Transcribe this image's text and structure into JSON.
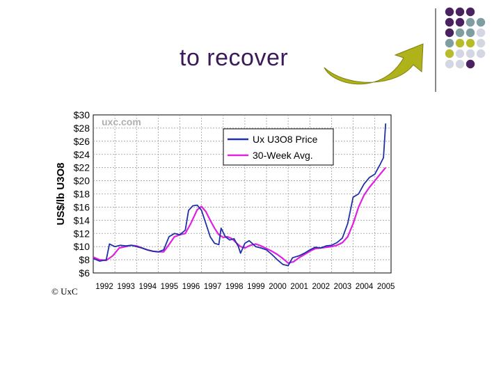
{
  "slide": {
    "title": "to recover",
    "copyright": "© UxC"
  },
  "decor": {
    "dot_colors": [
      "#4b2260",
      "#7f9ea2",
      "#b8bc2a",
      "#d5d6e3"
    ],
    "arrow_color": "#b0b21a"
  },
  "chart_data": {
    "type": "line",
    "title": "",
    "watermark": "uxc.com",
    "xlabel": "",
    "ylabel": "US$/lb U3O8",
    "ylim": [
      6,
      30
    ],
    "xlim": [
      1992,
      2005.75
    ],
    "y_ticks": [
      "$30",
      "$28",
      "$26",
      "$24",
      "$22",
      "$20",
      "$18",
      "$16",
      "$14",
      "$12",
      "$10",
      "$8",
      "$6"
    ],
    "x_ticks": [
      "1992",
      "1993",
      "1994",
      "1995",
      "1996",
      "1997",
      "1998",
      "1999",
      "2000",
      "2001",
      "2002",
      "2003",
      "2004",
      "2005"
    ],
    "grid": true,
    "legend": "top-right",
    "series": [
      {
        "name": "Ux U3O8 Price",
        "color": "#1f2fa8",
        "points": [
          [
            1992.0,
            8.2
          ],
          [
            1992.3,
            7.8
          ],
          [
            1992.6,
            8.0
          ],
          [
            1992.75,
            10.4
          ],
          [
            1993.0,
            10.0
          ],
          [
            1993.25,
            10.2
          ],
          [
            1993.5,
            10.1
          ],
          [
            1993.75,
            10.2
          ],
          [
            1994.0,
            10.0
          ],
          [
            1994.25,
            9.8
          ],
          [
            1994.5,
            9.5
          ],
          [
            1994.75,
            9.3
          ],
          [
            1995.0,
            9.2
          ],
          [
            1995.25,
            9.5
          ],
          [
            1995.5,
            11.5
          ],
          [
            1995.75,
            12.0
          ],
          [
            1996.0,
            11.8
          ],
          [
            1996.25,
            12.5
          ],
          [
            1996.4,
            15.5
          ],
          [
            1996.6,
            16.2
          ],
          [
            1996.8,
            16.3
          ],
          [
            1997.0,
            15.5
          ],
          [
            1997.2,
            13.5
          ],
          [
            1997.4,
            11.5
          ],
          [
            1997.6,
            10.5
          ],
          [
            1997.8,
            10.3
          ],
          [
            1997.9,
            12.8
          ],
          [
            1998.1,
            11.5
          ],
          [
            1998.3,
            11.0
          ],
          [
            1998.5,
            11.2
          ],
          [
            1998.7,
            10.0
          ],
          [
            1998.8,
            9.0
          ],
          [
            1999.0,
            10.5
          ],
          [
            1999.2,
            10.9
          ],
          [
            1999.5,
            10.0
          ],
          [
            1999.75,
            9.8
          ],
          [
            2000.0,
            9.5
          ],
          [
            2000.25,
            8.8
          ],
          [
            2000.5,
            8.0
          ],
          [
            2000.75,
            7.3
          ],
          [
            2001.0,
            7.1
          ],
          [
            2001.2,
            8.3
          ],
          [
            2001.5,
            8.6
          ],
          [
            2001.75,
            9.0
          ],
          [
            2002.0,
            9.5
          ],
          [
            2002.25,
            9.9
          ],
          [
            2002.5,
            9.8
          ],
          [
            2002.75,
            10.1
          ],
          [
            2003.0,
            10.2
          ],
          [
            2003.25,
            10.6
          ],
          [
            2003.5,
            11.3
          ],
          [
            2003.75,
            13.5
          ],
          [
            2004.0,
            17.5
          ],
          [
            2004.25,
            18.0
          ],
          [
            2004.5,
            19.5
          ],
          [
            2004.75,
            20.5
          ],
          [
            2005.0,
            21.0
          ],
          [
            2005.25,
            22.5
          ],
          [
            2005.4,
            23.5
          ],
          [
            2005.5,
            28.7
          ]
        ]
      },
      {
        "name": "30-Week Avg.",
        "color": "#e020e0",
        "points": [
          [
            1992.0,
            8.4
          ],
          [
            1992.3,
            8.0
          ],
          [
            1992.6,
            7.9
          ],
          [
            1992.9,
            8.6
          ],
          [
            1993.2,
            9.8
          ],
          [
            1993.5,
            10.0
          ],
          [
            1993.75,
            10.2
          ],
          [
            1994.0,
            10.1
          ],
          [
            1994.25,
            9.8
          ],
          [
            1994.5,
            9.5
          ],
          [
            1994.75,
            9.3
          ],
          [
            1995.0,
            9.2
          ],
          [
            1995.25,
            9.2
          ],
          [
            1995.5,
            10.3
          ],
          [
            1995.75,
            11.5
          ],
          [
            1996.0,
            11.8
          ],
          [
            1996.25,
            12.0
          ],
          [
            1996.5,
            13.5
          ],
          [
            1996.8,
            15.6
          ],
          [
            1997.0,
            16.1
          ],
          [
            1997.2,
            15.3
          ],
          [
            1997.4,
            14.0
          ],
          [
            1997.6,
            12.8
          ],
          [
            1997.8,
            11.8
          ],
          [
            1998.0,
            11.4
          ],
          [
            1998.2,
            11.5
          ],
          [
            1998.4,
            11.2
          ],
          [
            1998.6,
            10.6
          ],
          [
            1998.8,
            10.0
          ],
          [
            1999.0,
            9.8
          ],
          [
            1999.25,
            10.2
          ],
          [
            1999.5,
            10.4
          ],
          [
            1999.75,
            10.1
          ],
          [
            2000.0,
            9.7
          ],
          [
            2000.25,
            9.3
          ],
          [
            2000.5,
            8.8
          ],
          [
            2000.75,
            8.2
          ],
          [
            2001.0,
            7.5
          ],
          [
            2001.25,
            7.7
          ],
          [
            2001.5,
            8.3
          ],
          [
            2001.75,
            8.8
          ],
          [
            2002.0,
            9.3
          ],
          [
            2002.25,
            9.7
          ],
          [
            2002.5,
            9.8
          ],
          [
            2002.75,
            9.9
          ],
          [
            2003.0,
            10.0
          ],
          [
            2003.25,
            10.2
          ],
          [
            2003.5,
            10.6
          ],
          [
            2003.75,
            11.5
          ],
          [
            2004.0,
            13.5
          ],
          [
            2004.25,
            16.0
          ],
          [
            2004.5,
            17.8
          ],
          [
            2004.75,
            19.0
          ],
          [
            2005.0,
            20.0
          ],
          [
            2005.25,
            21.0
          ],
          [
            2005.5,
            22.0
          ]
        ]
      }
    ]
  }
}
